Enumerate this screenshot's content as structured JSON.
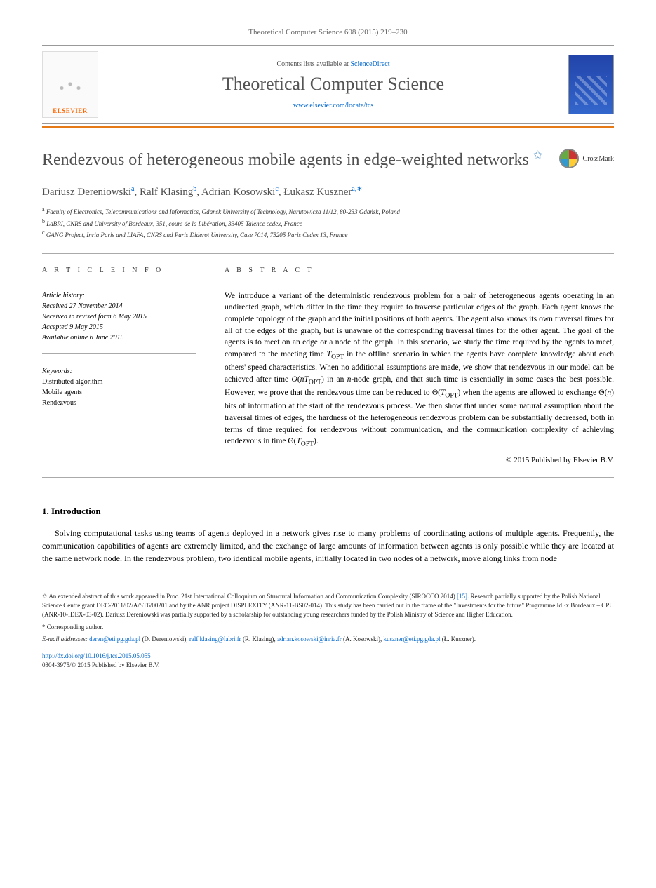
{
  "colors": {
    "accent": "#e67a17",
    "link": "#0066cc",
    "title_gray": "#505050",
    "publisher_orange": "#ff6600"
  },
  "journal_ref": "Theoretical Computer Science 608 (2015) 219–230",
  "header": {
    "contents_prefix": "Contents lists available at ",
    "contents_link": "ScienceDirect",
    "journal_title": "Theoretical Computer Science",
    "journal_url": "www.elsevier.com/locate/tcs",
    "publisher": "ELSEVIER"
  },
  "crossmark_label": "CrossMark",
  "article": {
    "title": "Rendezvous of heterogeneous mobile agents in edge-weighted networks",
    "title_note_marker": "✩",
    "authors": [
      {
        "name": "Dariusz Dereniowski",
        "aff": "a"
      },
      {
        "name": "Ralf Klasing",
        "aff": "b"
      },
      {
        "name": "Adrian Kosowski",
        "aff": "c"
      },
      {
        "name": "Łukasz Kuszner",
        "aff": "a,∗"
      }
    ],
    "affiliations": [
      {
        "marker": "a",
        "text": "Faculty of Electronics, Telecommunications and Informatics, Gdansk University of Technology, Narutowicza 11/12, 80-233 Gdańsk, Poland"
      },
      {
        "marker": "b",
        "text": "LaBRI, CNRS and University of Bordeaux, 351, cours de la Libération, 33405 Talence cedex, France"
      },
      {
        "marker": "c",
        "text": "GANG Project, Inria Paris and LIAFA, CNRS and Paris Diderot University, Case 7014, 75205 Paris Cedex 13, France"
      }
    ]
  },
  "info": {
    "heading": "A R T I C L E   I N F O",
    "history_label": "Article history:",
    "history": [
      "Received 27 November 2014",
      "Received in revised form 6 May 2015",
      "Accepted 9 May 2015",
      "Available online 6 June 2015"
    ],
    "keywords_label": "Keywords:",
    "keywords": [
      "Distributed algorithm",
      "Mobile agents",
      "Rendezvous"
    ]
  },
  "abstract": {
    "heading": "A B S T R A C T",
    "text": "We introduce a variant of the deterministic rendezvous problem for a pair of heterogeneous agents operating in an undirected graph, which differ in the time they require to traverse particular edges of the graph. Each agent knows the complete topology of the graph and the initial positions of both agents. The agent also knows its own traversal times for all of the edges of the graph, but is unaware of the corresponding traversal times for the other agent. The goal of the agents is to meet on an edge or a node of the graph. In this scenario, we study the time required by the agents to meet, compared to the meeting time T_OPT in the offline scenario in which the agents have complete knowledge about each others' speed characteristics. When no additional assumptions are made, we show that rendezvous in our model can be achieved after time O(nT_OPT) in an n-node graph, and that such time is essentially in some cases the best possible. However, we prove that the rendezvous time can be reduced to Θ(T_OPT) when the agents are allowed to exchange Θ(n) bits of information at the start of the rendezvous process. We then show that under some natural assumption about the traversal times of edges, the hardness of the heterogeneous rendezvous problem can be substantially decreased, both in terms of time required for rendezvous without communication, and the communication complexity of achieving rendezvous in time Θ(T_OPT).",
    "copyright": "© 2015 Published by Elsevier B.V."
  },
  "body": {
    "intro_heading": "1. Introduction",
    "intro_para": "Solving computational tasks using teams of agents deployed in a network gives rise to many problems of coordinating actions of multiple agents. Frequently, the communication capabilities of agents are extremely limited, and the exchange of large amounts of information between agents is only possible while they are located at the same network node. In the rendezvous problem, two identical mobile agents, initially located in two nodes of a network, move along links from node"
  },
  "footnotes": {
    "funding_marker": "✩",
    "funding": "An extended abstract of this work appeared in Proc. 21st International Colloquium on Structural Information and Communication Complexity (SIROCCO 2014) [15]. Research partially supported by the Polish National Science Centre grant DEC-2011/02/A/ST6/00201 and by the ANR project DISPLEXITY (ANR-11-BS02-014). This study has been carried out in the frame of the \"Investments for the future\" Programme IdEx Bordeaux – CPU (ANR-10-IDEX-03-02). Dariusz Dereniowski was partially supported by a scholarship for outstanding young researchers funded by the Polish Ministry of Science and Higher Education.",
    "corresponding_marker": "*",
    "corresponding": "Corresponding author.",
    "emails_label": "E-mail addresses:",
    "emails": [
      {
        "addr": "deren@eti.pg.gda.pl",
        "who": "(D. Dereniowski)"
      },
      {
        "addr": "ralf.klasing@labri.fr",
        "who": "(R. Klasing)"
      },
      {
        "addr": "adrian.kosowski@inria.fr",
        "who": "(A. Kosowski)"
      },
      {
        "addr": "kuszner@eti.pg.gda.pl",
        "who": "(Ł. Kuszner)"
      }
    ],
    "doi": "http://dx.doi.org/10.1016/j.tcs.2015.05.055",
    "issn_line": "0304-3975/© 2015 Published by Elsevier B.V."
  }
}
